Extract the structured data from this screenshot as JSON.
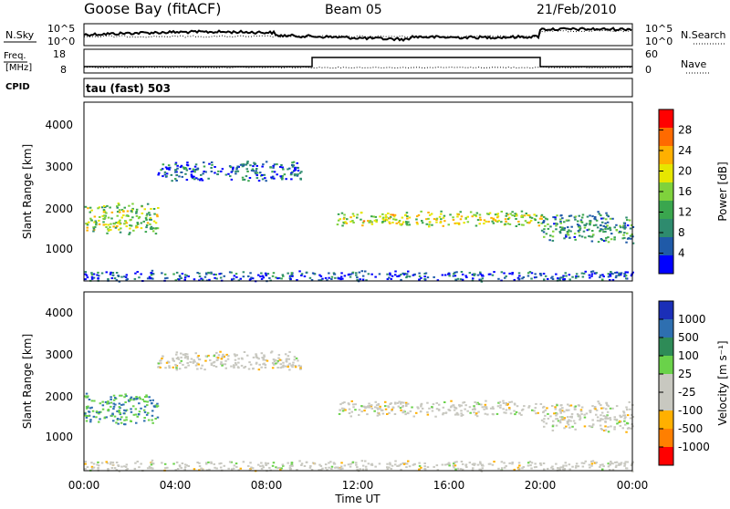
{
  "header": {
    "station": "Goose Bay (fitACF)",
    "beam": "Beam 05",
    "date": "21/Feb/2010"
  },
  "summary": {
    "nsky_label": "N.Sky",
    "nsky_ticks": [
      "10^5",
      "10^0"
    ],
    "nsearch_label": "N.Search",
    "nsearch_ticks": [
      "10^5",
      "10^0"
    ],
    "freq_label": "Freq.",
    "freq_unit": "[MHz]",
    "freq_ticks": [
      "18",
      "8"
    ],
    "nave_label": "Nave",
    "nave_ticks": [
      "60",
      "0"
    ],
    "cpid_label": "CPID",
    "program": "tau (fast) 503"
  },
  "axes": {
    "ylabel": "Slant Range [km]",
    "xlabel": "Time UT",
    "y_ticks": [
      "4000",
      "3000",
      "2000",
      "1000"
    ],
    "x_ticks": [
      "00:00",
      "04:00",
      "08:00",
      "12:00",
      "16:00",
      "20:00",
      "00:00"
    ]
  },
  "power_scale": {
    "label": "Power [dB]",
    "ticks": [
      "28",
      "24",
      "20",
      "16",
      "12",
      "8",
      "4"
    ],
    "colors": [
      "#ff0000",
      "#ff6a00",
      "#ffb000",
      "#e6e600",
      "#7fd23c",
      "#3aa64e",
      "#2e8b6e",
      "#1f5aa8",
      "#0000ff"
    ]
  },
  "velocity_scale": {
    "label": "Velocity [m s⁻¹]",
    "ticks": [
      "1000",
      "500",
      "100",
      "25",
      "-25",
      "-100",
      "-500",
      "-1000"
    ],
    "colors": [
      "#1b2fb8",
      "#2e6fb0",
      "#2e8b57",
      "#6ad24a",
      "#c8c8c0",
      "#c8c8c0",
      "#ffb000",
      "#ff7f00",
      "#ff0000"
    ]
  },
  "chart_data": [
    {
      "type": "heatmap",
      "title": "Power",
      "xlabel": "Time UT",
      "ylabel": "Slant Range [km]",
      "xlim": [
        0,
        24
      ],
      "ylim": [
        180,
        4500
      ],
      "colorbar_label": "Power [dB]",
      "regions": [
        {
          "t_start": 0.0,
          "t_end": 3.2,
          "r_start": 1300,
          "r_end": 2100,
          "value": 16
        },
        {
          "t_start": 3.2,
          "t_end": 9.5,
          "r_start": 2600,
          "r_end": 3100,
          "value": 6
        },
        {
          "t_start": 11.0,
          "t_end": 20.0,
          "r_start": 1500,
          "r_end": 1900,
          "value": 18
        },
        {
          "t_start": 20.0,
          "t_end": 24.0,
          "r_start": 1100,
          "r_end": 1900,
          "value": 10
        },
        {
          "t_start": 0.0,
          "t_end": 24.0,
          "r_start": 180,
          "r_end": 450,
          "value": 5
        }
      ]
    },
    {
      "type": "heatmap",
      "title": "Velocity",
      "xlabel": "Time UT",
      "ylabel": "Slant Range [km]",
      "xlim": [
        0,
        24
      ],
      "ylim": [
        180,
        4500
      ],
      "colorbar_label": "Velocity [m s⁻¹]",
      "regions": [
        {
          "t_start": 0.0,
          "t_end": 3.2,
          "r_start": 1300,
          "r_end": 2100,
          "value": 100
        },
        {
          "t_start": 3.2,
          "t_end": 9.5,
          "r_start": 2600,
          "r_end": 3100,
          "value": 0
        },
        {
          "t_start": 11.0,
          "t_end": 20.0,
          "r_start": 1500,
          "r_end": 1900,
          "value": 0
        },
        {
          "t_start": 20.0,
          "t_end": 24.0,
          "r_start": 1100,
          "r_end": 1900,
          "value": 0
        },
        {
          "t_start": 0.0,
          "t_end": 24.0,
          "r_start": 180,
          "r_end": 450,
          "value": 0
        }
      ]
    }
  ]
}
